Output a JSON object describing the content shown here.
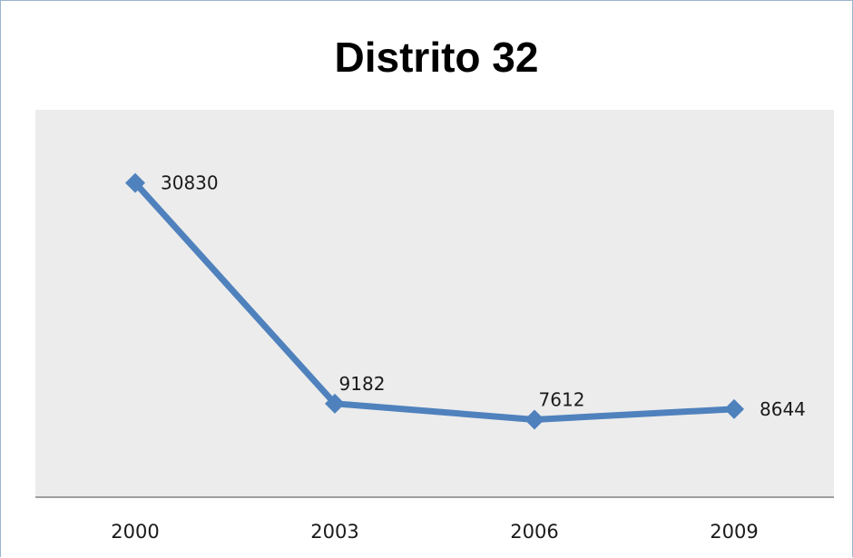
{
  "chart_data": {
    "type": "line",
    "title": "Distrito 32",
    "xlabel": "",
    "ylabel": "",
    "categories": [
      "2000",
      "2003",
      "2006",
      "2009"
    ],
    "series": [
      {
        "values": [
          30830,
          9182,
          7612,
          8644
        ],
        "color": "#4f81bd",
        "marker": "diamond",
        "data_labels": true
      }
    ],
    "ylim": [
      0,
      38000
    ],
    "grid": false,
    "legend": "none",
    "plot_background": "#ececec"
  }
}
